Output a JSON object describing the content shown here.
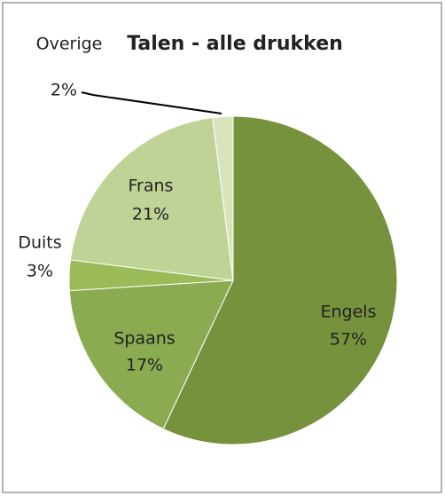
{
  "chart_data": {
    "type": "pie",
    "title": "Talen - alle drukken",
    "categories": [
      "Engels",
      "Spaans",
      "Duits",
      "Frans",
      "Overige"
    ],
    "values": [
      57,
      17,
      3,
      21,
      2
    ],
    "value_labels": [
      "57%",
      "17%",
      "3%",
      "21%",
      "2%"
    ],
    "colors": [
      "#76923c",
      "#8aab4f",
      "#9bbb59",
      "#bfd396",
      "#d8e4bc"
    ]
  }
}
